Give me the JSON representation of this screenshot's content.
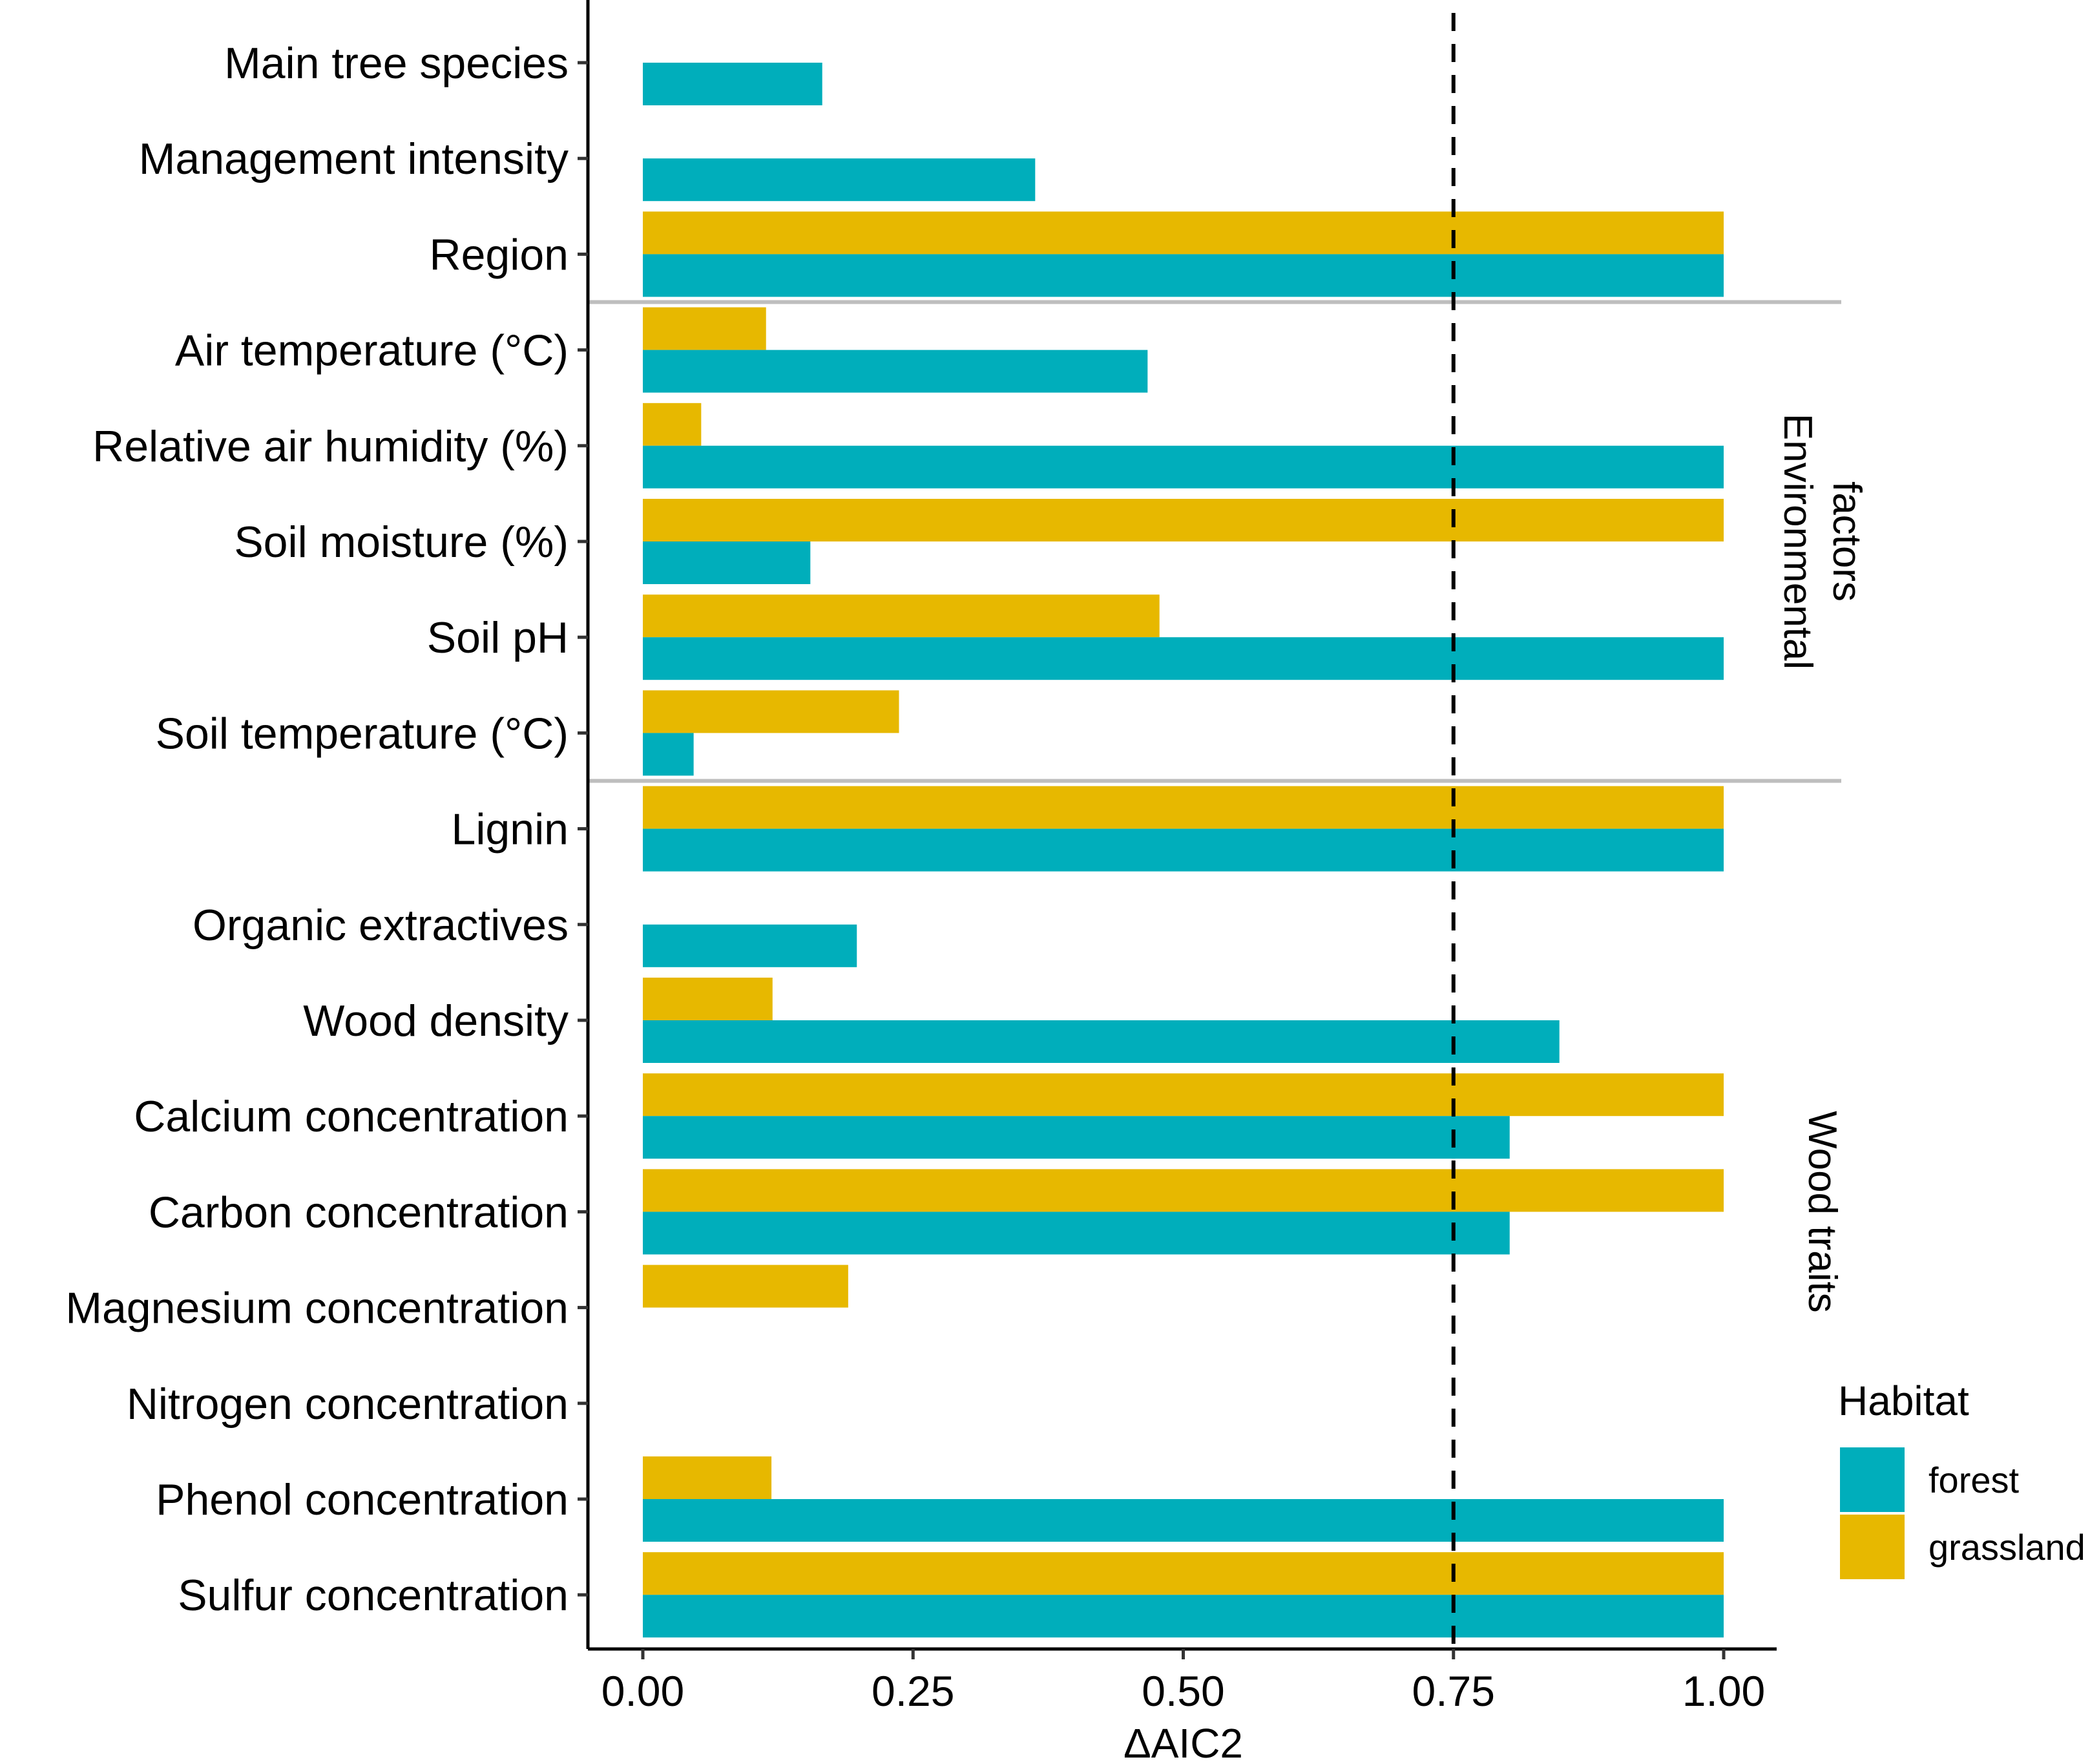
{
  "chart_data": {
    "type": "bar",
    "orientation": "horizontal",
    "title": "",
    "xlabel": "ΔAIC2",
    "ylabel": "",
    "xlim": [
      0,
      1
    ],
    "xticks": [
      "0.00",
      "0.25",
      "0.50",
      "0.75",
      "1.00"
    ],
    "xtick_values": [
      0,
      0.25,
      0.5,
      0.75,
      1
    ],
    "threshold": 0.75,
    "categories": [
      "Main tree species",
      "Management intensity",
      "Region",
      "Air temperature (°C)",
      "Relative air humidity (%)",
      "Soil moisture (%)",
      "Soil pH",
      "Soil temperature (°C)",
      "Lignin",
      "Organic extractives",
      "Wood density",
      "Calcium concentration",
      "Carbon concentration",
      "Magnesium concentration",
      "Nitrogen concentration",
      "Phenol concentration",
      "Sulfur concentration"
    ],
    "series": [
      {
        "name": "forest",
        "color": "#00AEBB",
        "values": [
          0.166,
          0.363,
          1.0,
          0.467,
          1.0,
          0.155,
          1.0,
          0.047,
          1.0,
          0.198,
          0.848,
          0.802,
          0.802,
          0.0,
          0.0,
          1.0,
          1.0
        ]
      },
      {
        "name": "grassland",
        "color": "#E7B800",
        "values": [
          0.0,
          0.0,
          1.0,
          0.114,
          0.054,
          1.0,
          0.478,
          0.237,
          1.0,
          0.0,
          0.12,
          1.0,
          1.0,
          0.19,
          0.0,
          0.119,
          1.0
        ]
      }
    ],
    "groups": [
      {
        "label": "",
        "first": 0,
        "last": 2
      },
      {
        "label": "Environmental factors",
        "lines": [
          "Environmental",
          "factors"
        ],
        "first": 3,
        "last": 7
      },
      {
        "label": "Wood traits",
        "lines": [
          "Wood traits"
        ],
        "first": 8,
        "last": 16
      }
    ],
    "legend": {
      "title": "Habitat",
      "entries": [
        "forest",
        "grassland"
      ],
      "position": "bottom-right"
    },
    "grid": false
  }
}
